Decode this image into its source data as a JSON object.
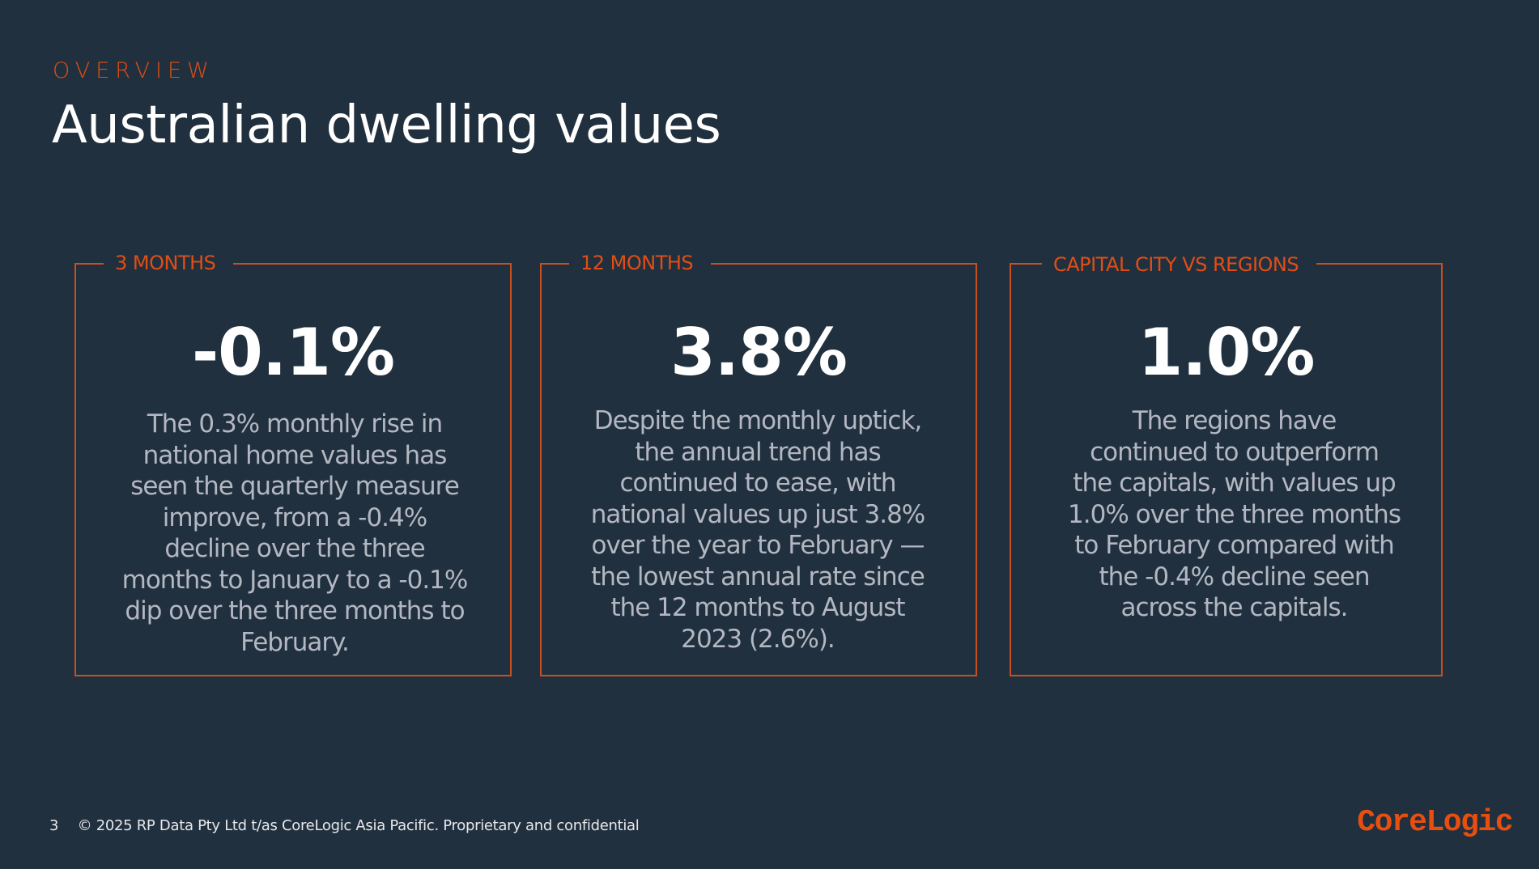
{
  "header": {
    "eyebrow": "OVERVIEW",
    "title": "Australian dwelling values"
  },
  "cards": [
    {
      "label": "3 MONTHS",
      "value": "-0.1%",
      "lines": [
        "The 0.3% monthly rise in",
        "national home values has",
        "seen the quarterly measure",
        "improve, from a -0.4%",
        "decline over the three",
        "months to January to a -0.1%",
        "dip over the three months to",
        "February."
      ]
    },
    {
      "label": "12 MONTHS",
      "value": "3.8%",
      "lines": [
        "Despite the monthly uptick,",
        "the annual trend has",
        "continued to ease, with",
        "national values up just 3.8%",
        "over the year to February —",
        "the lowest annual rate since",
        "the 12 months to August",
        "2023 (2.6%)."
      ]
    },
    {
      "label": "CAPITAL CITY VS REGIONS",
      "value": "1.0%",
      "lines": [
        "The regions have",
        "continued to outperform",
        "the capitals, with values up",
        "1.0% over the three months",
        "to February compared with",
        "the -0.4% decline seen",
        "across the capitals."
      ]
    }
  ],
  "footer": {
    "page_number": "3",
    "copyright": "© 2025 RP Data Pty Ltd t/as CoreLogic Asia Pacific. Proprietary and confidential"
  },
  "logo": {
    "text": "CoreLogic"
  },
  "colors": {
    "background": "#21303e",
    "accent": "#e04e16",
    "body_text": "#b3b7c2",
    "headline": "#ffffff"
  }
}
